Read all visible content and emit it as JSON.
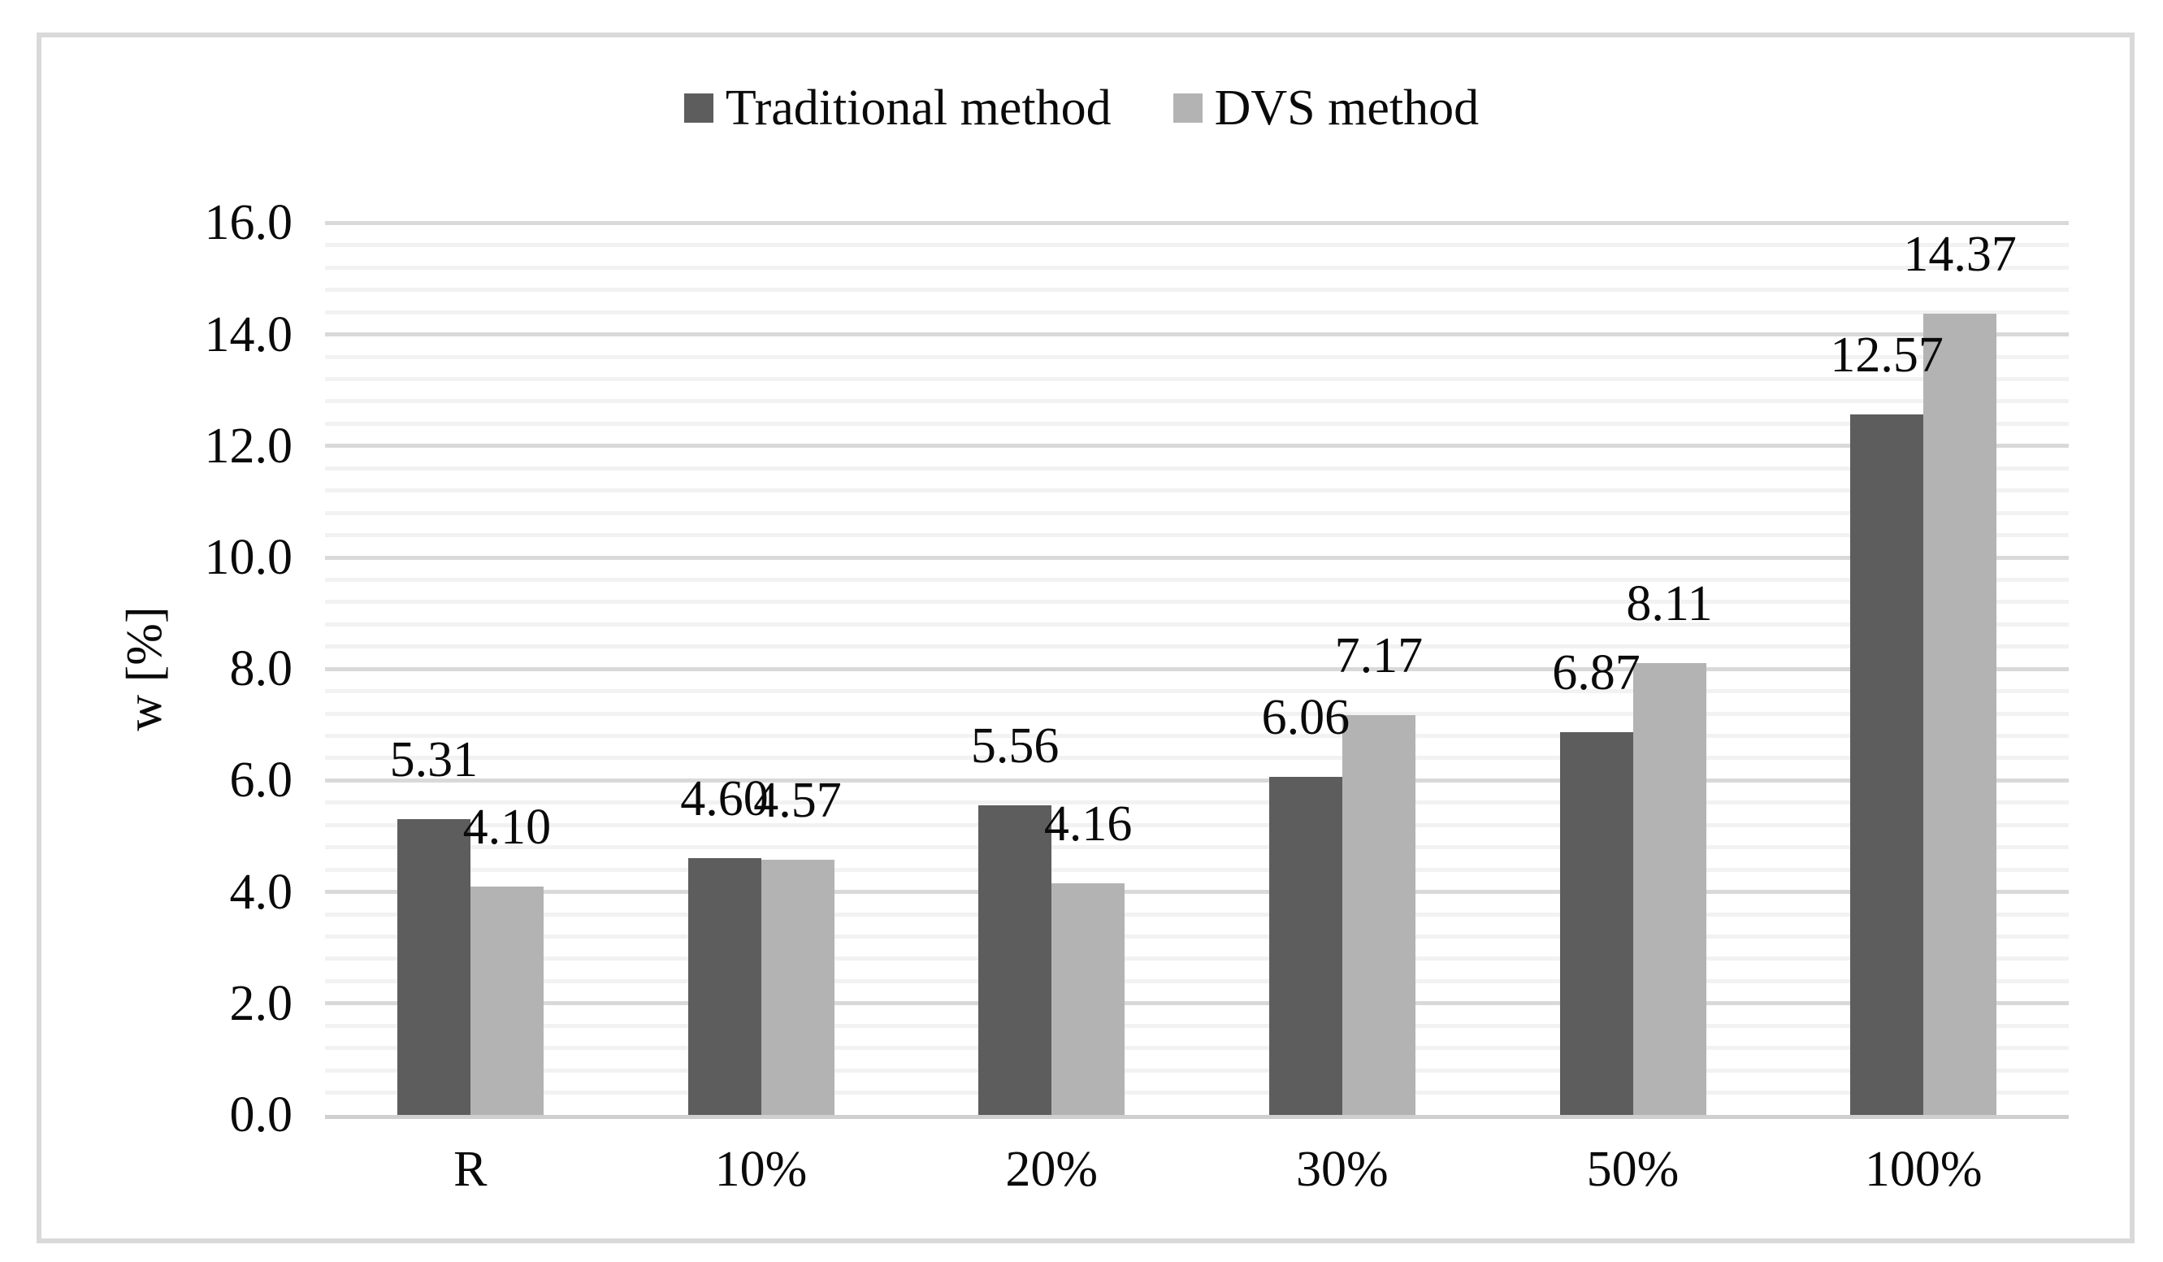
{
  "figure": {
    "background": "#ffffff",
    "frame_color": "#d9d9d9",
    "text_color": "#0a0a0a"
  },
  "legend": {
    "items": [
      {
        "label": "Traditional method",
        "color": "#5d5d5d"
      },
      {
        "label": "DVS method",
        "color": "#b3b3b3"
      }
    ]
  },
  "chart_data": {
    "type": "bar",
    "categories": [
      "R",
      "10%",
      "20%",
      "30%",
      "50%",
      "100%"
    ],
    "series": [
      {
        "name": "Traditional method",
        "color": "#5d5d5d",
        "values": [
          5.31,
          4.6,
          5.56,
          6.06,
          6.87,
          12.57
        ],
        "labels": [
          "5.31",
          "4.60",
          "5.56",
          "6.06",
          "6.87",
          "12.57"
        ]
      },
      {
        "name": "DVS method",
        "color": "#b3b3b3",
        "values": [
          4.1,
          4.57,
          4.16,
          7.17,
          8.11,
          14.37
        ],
        "labels": [
          "4.10",
          "4.57",
          "4.16",
          "7.17",
          "8.11",
          "14.37"
        ]
      }
    ],
    "title": "",
    "xlabel": "",
    "ylabel": "w [%]",
    "ylim": [
      0,
      16
    ],
    "ytick_step": 2.0,
    "yminor_step": 0.4,
    "ytick_labels": [
      "0.0",
      "2.0",
      "4.0",
      "6.0",
      "8.0",
      "10.0",
      "12.0",
      "14.0",
      "16.0"
    ],
    "grid": "horizontal major+minor",
    "gridline_major_color": "#d9d9d9",
    "gridline_minor_color": "#f2f2f2",
    "axis_line_color": "#cfcfcf",
    "legend_position": "top-center",
    "data_labels": "outside-end"
  }
}
